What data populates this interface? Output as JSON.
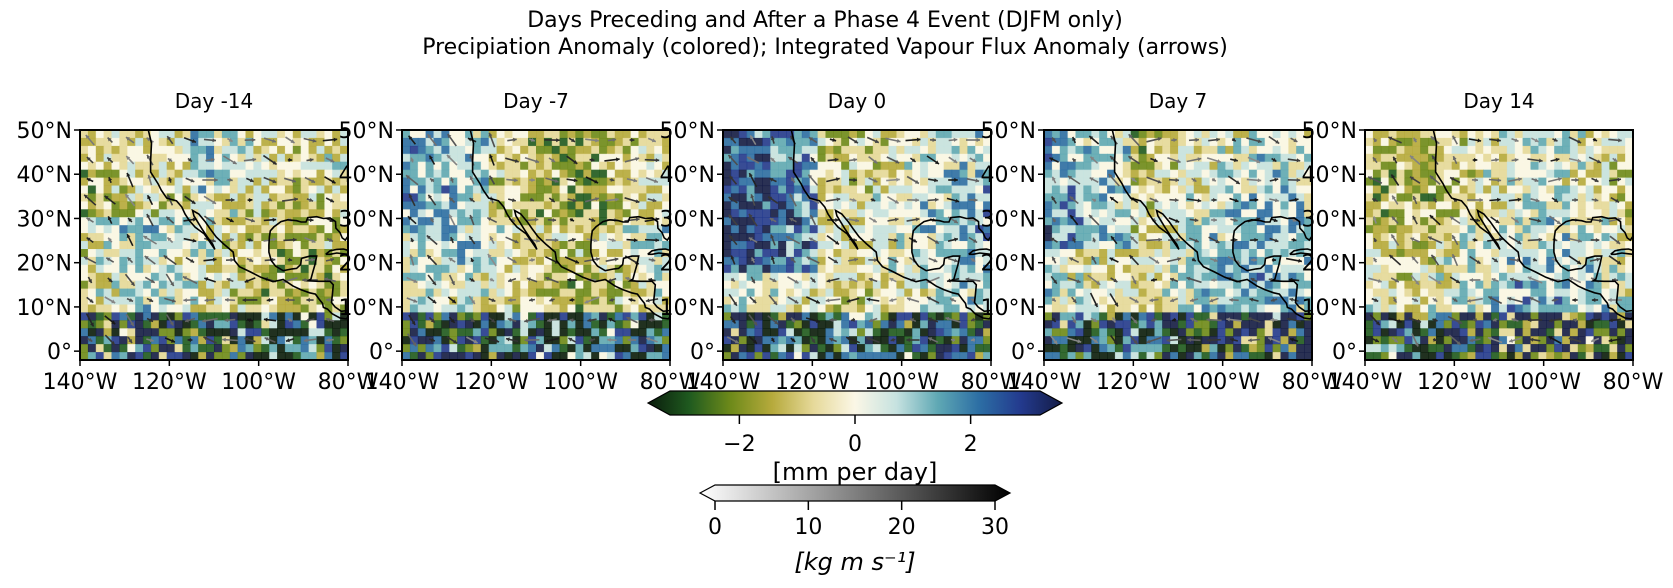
{
  "figure": {
    "title_line1": "Days Preceding and After a Phase 4 Event (DJFM only)",
    "title_line2": "Precipiation Anomaly (colored); Integrated Vapour Flux Anomaly (arrows)"
  },
  "panels": [
    {
      "title": "Day -14"
    },
    {
      "title": "Day -7"
    },
    {
      "title": "Day 0"
    },
    {
      "title": "Day 7"
    },
    {
      "title": "Day 14"
    }
  ],
  "axes": {
    "lat_ticks": [
      "50°N",
      "40°N",
      "30°N",
      "20°N",
      "10°N",
      "0°"
    ],
    "lat_values": [
      50,
      40,
      30,
      20,
      10,
      0
    ],
    "lon_ticks": [
      "140°W",
      "120°W",
      "100°W",
      "80°W"
    ],
    "lon_values": [
      -140,
      -120,
      -100,
      -80
    ],
    "extent": {
      "lon": [
        -140,
        -80
      ],
      "lat": [
        -2,
        50
      ]
    }
  },
  "colorbars": {
    "precip": {
      "label": "[mm per day]",
      "ticks": [
        "−2",
        "0",
        "2"
      ],
      "tick_values": [
        -2,
        0,
        2
      ],
      "range": [
        -3.2,
        3.2
      ],
      "extend": "both",
      "colors": [
        "#0a1c0c",
        "#1f5a1f",
        "#6e8a1a",
        "#b6aa3c",
        "#e6d99a",
        "#fbf7e6",
        "#c6e2e0",
        "#5fa8b4",
        "#2c6ea4",
        "#233a8e",
        "#141c46"
      ]
    },
    "flux": {
      "label": "[kg m s⁻¹]",
      "ticks": [
        "0",
        "10",
        "20",
        "30"
      ],
      "tick_values": [
        0,
        10,
        20,
        30
      ],
      "range": [
        0,
        30
      ],
      "extend": "both",
      "colors": [
        "#ffffff",
        "#000000"
      ]
    }
  }
}
